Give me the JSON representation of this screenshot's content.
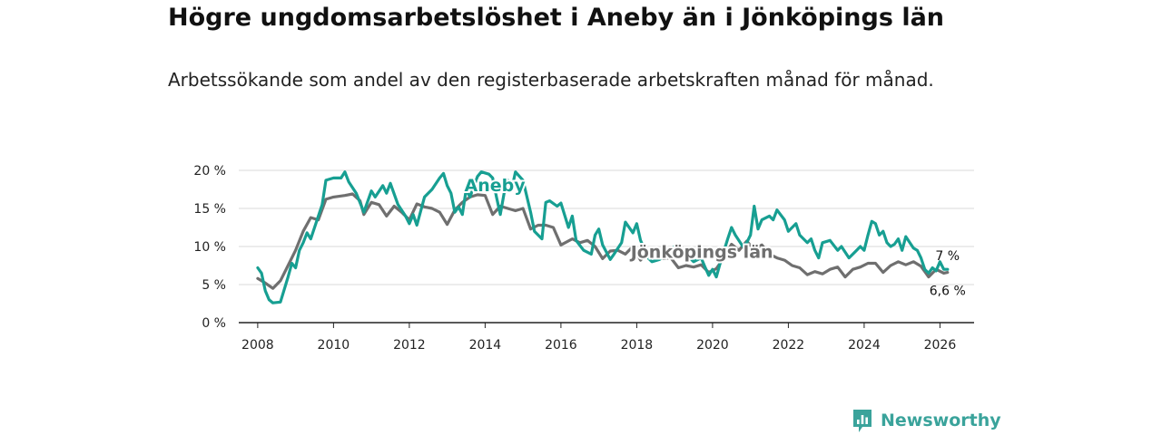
{
  "header": {
    "title": "Högre ungdomsarbetslöshet i Aneby än i Jönköpings län",
    "subtitle": "Arbetssökande som andel av den registerbaserade arbetskraften månad för månad."
  },
  "brand": {
    "name": "Newsworthy",
    "color": "#3aa39b"
  },
  "chart_data": {
    "type": "line",
    "title": "Högre ungdomsarbetslöshet i Aneby än i Jönköpings län",
    "xlabel": "",
    "ylabel": "",
    "xlim": [
      2007.5,
      2026.9
    ],
    "ylim": [
      0,
      20
    ],
    "grid": true,
    "x_ticks": [
      2008,
      2010,
      2012,
      2014,
      2016,
      2018,
      2020,
      2022,
      2024,
      2026
    ],
    "x_tick_labels": [
      "2008",
      "2010",
      "2012",
      "2014",
      "2016",
      "2018",
      "2020",
      "2022",
      "2024",
      "2026"
    ],
    "y_ticks": [
      0,
      5,
      10,
      15,
      20
    ],
    "y_tick_labels": [
      "0 %",
      "5 %",
      "10 %",
      "15 %",
      "20 %"
    ],
    "series": [
      {
        "name": "Jönköpings län",
        "color": "#6f6f6f",
        "end_label": "6,6 %",
        "points": [
          [
            2008.0,
            5.8
          ],
          [
            2008.2,
            5.2
          ],
          [
            2008.4,
            4.5
          ],
          [
            2008.6,
            5.5
          ],
          [
            2008.8,
            7.5
          ],
          [
            2009.0,
            9.5
          ],
          [
            2009.2,
            12.0
          ],
          [
            2009.4,
            13.8
          ],
          [
            2009.6,
            13.5
          ],
          [
            2009.8,
            16.2
          ],
          [
            2010.0,
            16.5
          ],
          [
            2010.3,
            16.7
          ],
          [
            2010.5,
            16.9
          ],
          [
            2010.7,
            16.0
          ],
          [
            2010.8,
            14.2
          ],
          [
            2011.0,
            15.8
          ],
          [
            2011.2,
            15.5
          ],
          [
            2011.4,
            14.0
          ],
          [
            2011.6,
            15.3
          ],
          [
            2011.8,
            14.5
          ],
          [
            2012.0,
            13.5
          ],
          [
            2012.2,
            15.6
          ],
          [
            2012.4,
            15.2
          ],
          [
            2012.6,
            15.0
          ],
          [
            2012.8,
            14.5
          ],
          [
            2013.0,
            12.9
          ],
          [
            2013.2,
            14.8
          ],
          [
            2013.4,
            15.8
          ],
          [
            2013.6,
            16.5
          ],
          [
            2013.8,
            16.8
          ],
          [
            2014.0,
            16.7
          ],
          [
            2014.2,
            14.2
          ],
          [
            2014.4,
            15.3
          ],
          [
            2014.6,
            15.0
          ],
          [
            2014.8,
            14.7
          ],
          [
            2015.0,
            15.0
          ],
          [
            2015.2,
            12.3
          ],
          [
            2015.4,
            12.8
          ],
          [
            2015.6,
            12.8
          ],
          [
            2015.8,
            12.5
          ],
          [
            2016.0,
            10.2
          ],
          [
            2016.3,
            11.0
          ],
          [
            2016.5,
            10.5
          ],
          [
            2016.7,
            10.8
          ],
          [
            2016.9,
            10.0
          ],
          [
            2017.1,
            8.4
          ],
          [
            2017.3,
            9.4
          ],
          [
            2017.5,
            9.5
          ],
          [
            2017.7,
            9.0
          ],
          [
            2017.9,
            10.0
          ],
          [
            2018.1,
            8.2
          ],
          [
            2018.3,
            9.3
          ],
          [
            2018.5,
            8.8
          ],
          [
            2018.7,
            8.4
          ],
          [
            2018.9,
            8.5
          ],
          [
            2019.1,
            7.2
          ],
          [
            2019.3,
            7.5
          ],
          [
            2019.5,
            7.3
          ],
          [
            2019.7,
            7.6
          ],
          [
            2019.9,
            6.6
          ],
          [
            2020.1,
            7.1
          ],
          [
            2020.3,
            8.5
          ],
          [
            2020.5,
            10.3
          ],
          [
            2020.7,
            9.5
          ],
          [
            2020.9,
            10.7
          ],
          [
            2021.1,
            9.6
          ],
          [
            2021.3,
            10.2
          ],
          [
            2021.5,
            9.0
          ],
          [
            2021.7,
            8.5
          ],
          [
            2021.9,
            8.2
          ],
          [
            2022.1,
            7.5
          ],
          [
            2022.3,
            7.2
          ],
          [
            2022.5,
            6.3
          ],
          [
            2022.7,
            6.7
          ],
          [
            2022.9,
            6.4
          ],
          [
            2023.1,
            7.0
          ],
          [
            2023.3,
            7.3
          ],
          [
            2023.5,
            6.0
          ],
          [
            2023.7,
            7.0
          ],
          [
            2023.9,
            7.3
          ],
          [
            2024.1,
            7.8
          ],
          [
            2024.3,
            7.8
          ],
          [
            2024.5,
            6.6
          ],
          [
            2024.7,
            7.5
          ],
          [
            2024.9,
            8.0
          ],
          [
            2025.1,
            7.6
          ],
          [
            2025.3,
            8.0
          ],
          [
            2025.5,
            7.4
          ],
          [
            2025.7,
            6.0
          ],
          [
            2025.9,
            7.0
          ],
          [
            2026.1,
            6.5
          ],
          [
            2026.2,
            6.6
          ]
        ]
      },
      {
        "name": "Aneby",
        "color": "#179f92",
        "end_label": "7 %",
        "points": [
          [
            2008.0,
            7.2
          ],
          [
            2008.1,
            6.5
          ],
          [
            2008.2,
            4.2
          ],
          [
            2008.3,
            3.0
          ],
          [
            2008.4,
            2.6
          ],
          [
            2008.6,
            2.7
          ],
          [
            2008.8,
            6.0
          ],
          [
            2008.9,
            7.8
          ],
          [
            2009.0,
            7.2
          ],
          [
            2009.1,
            9.5
          ],
          [
            2009.2,
            10.5
          ],
          [
            2009.3,
            11.8
          ],
          [
            2009.4,
            11.0
          ],
          [
            2009.5,
            12.5
          ],
          [
            2009.7,
            15.5
          ],
          [
            2009.8,
            18.7
          ],
          [
            2010.0,
            19.0
          ],
          [
            2010.2,
            19.0
          ],
          [
            2010.3,
            19.8
          ],
          [
            2010.4,
            18.5
          ],
          [
            2010.6,
            17.0
          ],
          [
            2010.8,
            14.5
          ],
          [
            2011.0,
            17.3
          ],
          [
            2011.1,
            16.5
          ],
          [
            2011.3,
            18.0
          ],
          [
            2011.4,
            17.0
          ],
          [
            2011.5,
            18.3
          ],
          [
            2011.7,
            15.5
          ],
          [
            2011.9,
            14.0
          ],
          [
            2012.0,
            13.0
          ],
          [
            2012.1,
            14.2
          ],
          [
            2012.2,
            12.8
          ],
          [
            2012.4,
            16.5
          ],
          [
            2012.6,
            17.5
          ],
          [
            2012.8,
            19.0
          ],
          [
            2012.9,
            19.6
          ],
          [
            2013.0,
            18.0
          ],
          [
            2013.1,
            17.0
          ],
          [
            2013.2,
            14.5
          ],
          [
            2013.3,
            15.2
          ],
          [
            2013.4,
            14.2
          ],
          [
            2013.5,
            17.5
          ],
          [
            2013.6,
            16.5
          ],
          [
            2013.8,
            19.2
          ],
          [
            2013.9,
            19.8
          ],
          [
            2014.1,
            19.5
          ],
          [
            2014.2,
            19.0
          ],
          [
            2014.3,
            16.5
          ],
          [
            2014.4,
            14.2
          ],
          [
            2014.5,
            17.0
          ],
          [
            2014.6,
            18.7
          ],
          [
            2014.7,
            17.5
          ],
          [
            2014.8,
            19.8
          ],
          [
            2015.0,
            18.7
          ],
          [
            2015.2,
            14.5
          ],
          [
            2015.3,
            12.0
          ],
          [
            2015.5,
            11.0
          ],
          [
            2015.6,
            15.8
          ],
          [
            2015.7,
            16.0
          ],
          [
            2015.9,
            15.3
          ],
          [
            2016.0,
            15.7
          ],
          [
            2016.2,
            12.5
          ],
          [
            2016.3,
            14.0
          ],
          [
            2016.4,
            10.8
          ],
          [
            2016.6,
            9.5
          ],
          [
            2016.8,
            9.0
          ],
          [
            2016.9,
            11.5
          ],
          [
            2017.0,
            12.3
          ],
          [
            2017.1,
            10.2
          ],
          [
            2017.3,
            8.3
          ],
          [
            2017.4,
            9.0
          ],
          [
            2017.6,
            10.5
          ],
          [
            2017.7,
            13.2
          ],
          [
            2017.9,
            11.8
          ],
          [
            2018.0,
            13.0
          ],
          [
            2018.1,
            10.8
          ],
          [
            2018.3,
            8.5
          ],
          [
            2018.4,
            8.0
          ],
          [
            2018.6,
            8.3
          ],
          [
            2018.8,
            9.0
          ],
          [
            2019.0,
            10.0
          ],
          [
            2019.1,
            9.7
          ],
          [
            2019.3,
            9.0
          ],
          [
            2019.5,
            8.0
          ],
          [
            2019.7,
            8.5
          ],
          [
            2019.8,
            7.3
          ],
          [
            2019.9,
            6.2
          ],
          [
            2020.0,
            7.0
          ],
          [
            2020.1,
            6.0
          ],
          [
            2020.2,
            7.8
          ],
          [
            2020.4,
            11.0
          ],
          [
            2020.5,
            12.5
          ],
          [
            2020.6,
            11.5
          ],
          [
            2020.8,
            10.0
          ],
          [
            2020.9,
            10.5
          ],
          [
            2021.0,
            11.5
          ],
          [
            2021.1,
            15.3
          ],
          [
            2021.2,
            12.3
          ],
          [
            2021.3,
            13.5
          ],
          [
            2021.5,
            14.0
          ],
          [
            2021.6,
            13.5
          ],
          [
            2021.7,
            14.8
          ],
          [
            2021.9,
            13.5
          ],
          [
            2022.0,
            12.0
          ],
          [
            2022.2,
            13.0
          ],
          [
            2022.3,
            11.5
          ],
          [
            2022.5,
            10.5
          ],
          [
            2022.6,
            11.0
          ],
          [
            2022.7,
            9.5
          ],
          [
            2022.8,
            8.5
          ],
          [
            2022.9,
            10.5
          ],
          [
            2023.1,
            10.8
          ],
          [
            2023.3,
            9.5
          ],
          [
            2023.4,
            10.0
          ],
          [
            2023.6,
            8.5
          ],
          [
            2023.8,
            9.5
          ],
          [
            2023.9,
            10.0
          ],
          [
            2024.0,
            9.5
          ],
          [
            2024.1,
            11.5
          ],
          [
            2024.2,
            13.3
          ],
          [
            2024.3,
            13.0
          ],
          [
            2024.4,
            11.5
          ],
          [
            2024.5,
            12.0
          ],
          [
            2024.6,
            10.5
          ],
          [
            2024.7,
            10.0
          ],
          [
            2024.8,
            10.3
          ],
          [
            2024.9,
            11.0
          ],
          [
            2025.0,
            9.5
          ],
          [
            2025.1,
            11.3
          ],
          [
            2025.3,
            9.8
          ],
          [
            2025.4,
            9.5
          ],
          [
            2025.5,
            8.5
          ],
          [
            2025.6,
            7.0
          ],
          [
            2025.7,
            6.5
          ],
          [
            2025.8,
            7.2
          ],
          [
            2025.9,
            6.8
          ],
          [
            2026.0,
            8.0
          ],
          [
            2026.1,
            7.0
          ],
          [
            2026.2,
            7.0
          ]
        ]
      }
    ]
  }
}
